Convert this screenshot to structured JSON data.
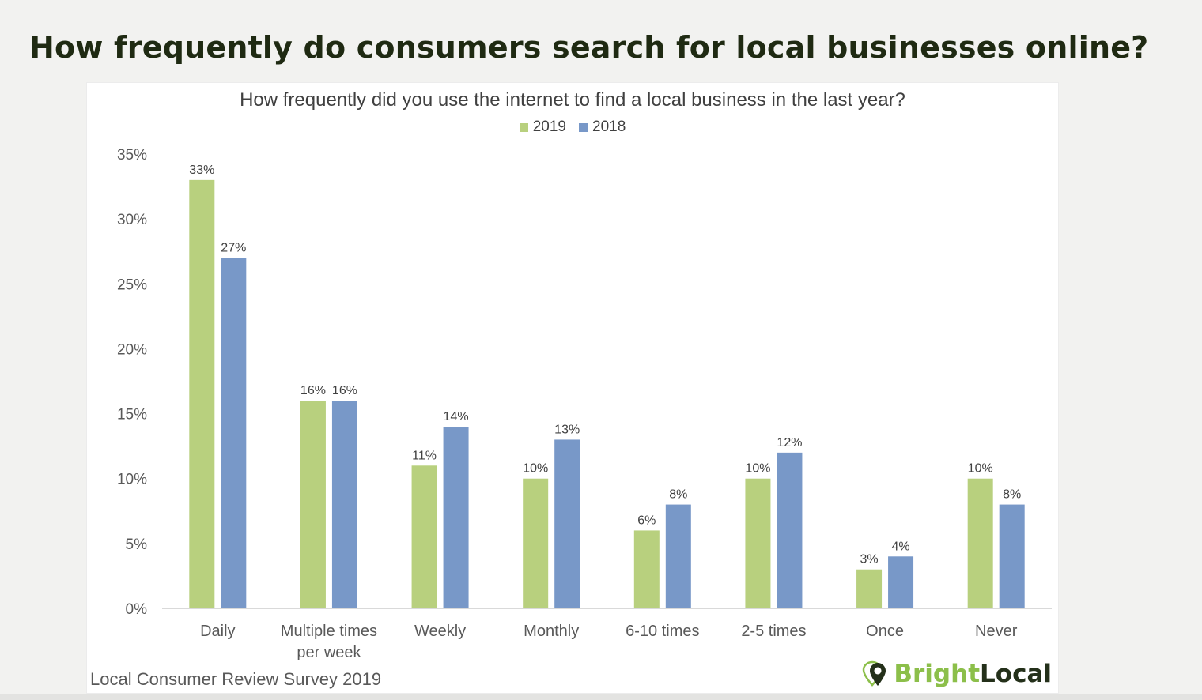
{
  "slide": {
    "title": "How frequently do consumers search for local businesses online?"
  },
  "source_note": "Local Consumer Review Survey 2019",
  "logo": {
    "bright": "Bright",
    "local": "Local",
    "icon": "map-pin-icon"
  },
  "colors": {
    "series_2019": "#b8d07e",
    "series_2018": "#7898c8",
    "axis_text": "#404040"
  },
  "chart_data": {
    "type": "bar",
    "title": "How frequently did you use the internet to find a local business in the last year?",
    "xlabel": "",
    "ylabel": "",
    "categories": [
      [
        "Daily"
      ],
      [
        "Multiple times",
        "per week"
      ],
      [
        "Weekly"
      ],
      [
        "Monthly"
      ],
      [
        "6-10 times"
      ],
      [
        "2-5 times"
      ],
      [
        "Once"
      ],
      [
        "Never"
      ]
    ],
    "series": [
      {
        "name": "2019",
        "color": "#b8d07e",
        "values": [
          33,
          16,
          11,
          10,
          6,
          10,
          3,
          10
        ],
        "labels": [
          "33%",
          "16%",
          "11%",
          "10%",
          "6%",
          "10%",
          "3%",
          "10%"
        ]
      },
      {
        "name": "2018",
        "color": "#7898c8",
        "values": [
          27,
          16,
          14,
          13,
          8,
          12,
          4,
          8
        ],
        "labels": [
          "27%",
          "16%",
          "14%",
          "13%",
          "8%",
          "12%",
          "4%",
          "8%"
        ]
      }
    ],
    "ylim": [
      0,
      35
    ],
    "yticks": [
      0,
      5,
      10,
      15,
      20,
      25,
      30,
      35
    ],
    "ytick_labels": [
      "0%",
      "5%",
      "10%",
      "15%",
      "20%",
      "25%",
      "30%",
      "35%"
    ],
    "grid": false,
    "legend": "top-center"
  }
}
